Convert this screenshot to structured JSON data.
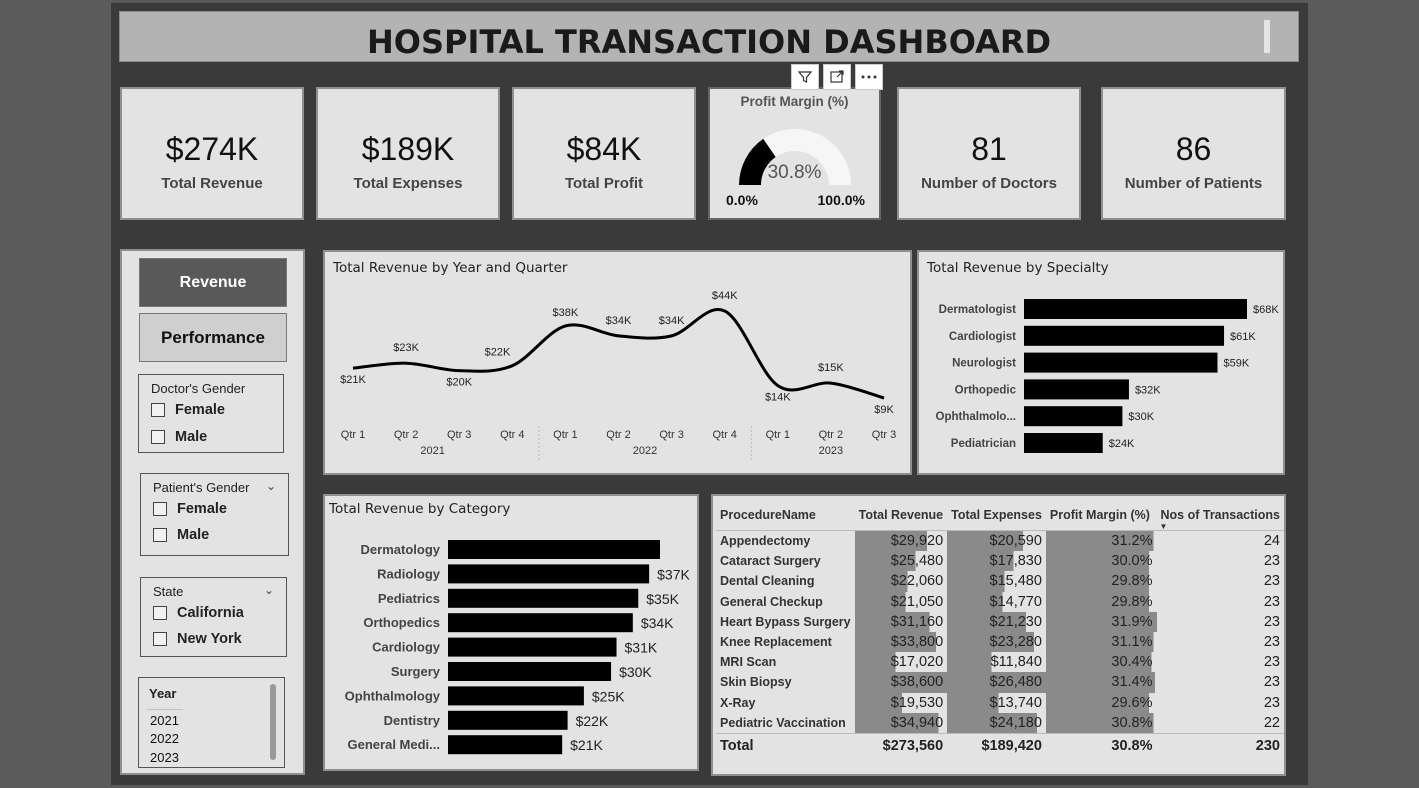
{
  "header": {
    "title": "HOSPITAL TRANSACTION DASHBOARD"
  },
  "kpis": [
    {
      "value": "$274K",
      "label": "Total Revenue"
    },
    {
      "value": "$189K",
      "label": "Total Expenses"
    },
    {
      "value": "$84K",
      "label": "Total Profit"
    },
    {
      "value": "81",
      "label": "Number of Doctors"
    },
    {
      "value": "86",
      "label": "Number of Patients"
    }
  ],
  "gauge": {
    "title": "Profit Margin (%)",
    "value": "30.8%",
    "min": "0.0%",
    "max": "100.0%",
    "fraction": 0.308
  },
  "nav": {
    "revenue": "Revenue",
    "performance": "Performance"
  },
  "slicers": {
    "doctor_gender": {
      "title": "Doctor's Gender",
      "options": [
        "Female",
        "Male"
      ]
    },
    "patient_gender": {
      "title": "Patient's Gender",
      "options": [
        "Female",
        "Male"
      ]
    },
    "state": {
      "title": "State",
      "options": [
        "California",
        "New York"
      ]
    },
    "year": {
      "title": "Year",
      "options": [
        "2021",
        "2022",
        "2023"
      ]
    }
  },
  "panels": {
    "line": {
      "title": "Total Revenue by Year and Quarter"
    },
    "specialty": {
      "title": "Total Revenue by Specialty"
    },
    "category": {
      "title": "Total Revenue by Category"
    }
  },
  "chart_data": [
    {
      "type": "line",
      "title": "Total Revenue by Year and Quarter",
      "x": [
        "Qtr 1",
        "Qtr 2",
        "Qtr 3",
        "Qtr 4",
        "Qtr 1",
        "Qtr 2",
        "Qtr 3",
        "Qtr 4",
        "Qtr 1",
        "Qtr 2",
        "Qtr 3"
      ],
      "years": [
        "2021",
        "2022",
        "2023"
      ],
      "values": [
        21,
        23,
        20,
        22,
        38,
        34,
        34,
        44,
        14,
        15,
        9
      ],
      "labels": [
        "$21K",
        "$23K",
        "$20K",
        "$22K",
        "$38K",
        "$34K",
        "$34K",
        "$44K",
        "$14K",
        "$15K",
        "$9K"
      ]
    },
    {
      "type": "bar",
      "title": "Total Revenue by Specialty",
      "categories": [
        "Dermatologist",
        "Cardiologist",
        "Neurologist",
        "Orthopedic",
        "Ophthalmolo...",
        "Pediatrician"
      ],
      "values": [
        68,
        61,
        59,
        32,
        30,
        24
      ],
      "labels": [
        "$68K",
        "$61K",
        "$59K",
        "$32K",
        "$30K",
        "$24K"
      ]
    },
    {
      "type": "bar",
      "title": "Total Revenue by Category",
      "categories": [
        "Dermatology",
        "Radiology",
        "Pediatrics",
        "Orthopedics",
        "Cardiology",
        "Surgery",
        "Ophthalmology",
        "Dentistry",
        "General Medi..."
      ],
      "values": [
        39,
        37,
        35,
        34,
        31,
        30,
        25,
        22,
        21
      ],
      "labels": [
        "",
        "$37K",
        "$35K",
        "$34K",
        "$31K",
        "$30K",
        "$25K",
        "$22K",
        "$21K"
      ]
    }
  ],
  "table": {
    "headers": [
      "ProcedureName",
      "Total Revenue",
      "Total Expenses",
      "Profit Margin (%)",
      "Nos of Transactions"
    ],
    "rows": [
      {
        "name": "Appendectomy",
        "rev": "$29,920",
        "exp": "$20,590",
        "pm": "31.2%",
        "n": "24",
        "revf": 0.78,
        "expf": 0.77,
        "pmf": 0.97
      },
      {
        "name": "Cataract Surgery",
        "rev": "$25,480",
        "exp": "$17,830",
        "pm": "30.0%",
        "n": "23",
        "revf": 0.66,
        "expf": 0.67,
        "pmf": 0.93
      },
      {
        "name": "Dental Cleaning",
        "rev": "$22,060",
        "exp": "$15,480",
        "pm": "29.8%",
        "n": "23",
        "revf": 0.57,
        "expf": 0.58,
        "pmf": 0.93
      },
      {
        "name": "General Checkup",
        "rev": "$21,050",
        "exp": "$14,770",
        "pm": "29.8%",
        "n": "23",
        "revf": 0.55,
        "expf": 0.56,
        "pmf": 0.93
      },
      {
        "name": "Heart Bypass Surgery",
        "rev": "$31,160",
        "exp": "$21,230",
        "pm": "31.9%",
        "n": "23",
        "revf": 0.81,
        "expf": 0.8,
        "pmf": 1.0
      },
      {
        "name": "Knee Replacement",
        "rev": "$33,800",
        "exp": "$23,280",
        "pm": "31.1%",
        "n": "23",
        "revf": 0.88,
        "expf": 0.88,
        "pmf": 0.97
      },
      {
        "name": "MRI Scan",
        "rev": "$17,020",
        "exp": "$11,840",
        "pm": "30.4%",
        "n": "23",
        "revf": 0.44,
        "expf": 0.45,
        "pmf": 0.95
      },
      {
        "name": "Skin Biopsy",
        "rev": "$38,600",
        "exp": "$26,480",
        "pm": "31.4%",
        "n": "23",
        "revf": 1.0,
        "expf": 1.0,
        "pmf": 0.98
      },
      {
        "name": "X-Ray",
        "rev": "$19,530",
        "exp": "$13,740",
        "pm": "29.6%",
        "n": "23",
        "revf": 0.51,
        "expf": 0.52,
        "pmf": 0.93
      },
      {
        "name": "Pediatric Vaccination",
        "rev": "$34,940",
        "exp": "$24,180",
        "pm": "30.8%",
        "n": "22",
        "revf": 0.91,
        "expf": 0.91,
        "pmf": 0.97
      }
    ],
    "total": {
      "label": "Total",
      "rev": "$273,560",
      "exp": "$189,420",
      "pm": "30.8%",
      "n": "230"
    }
  }
}
